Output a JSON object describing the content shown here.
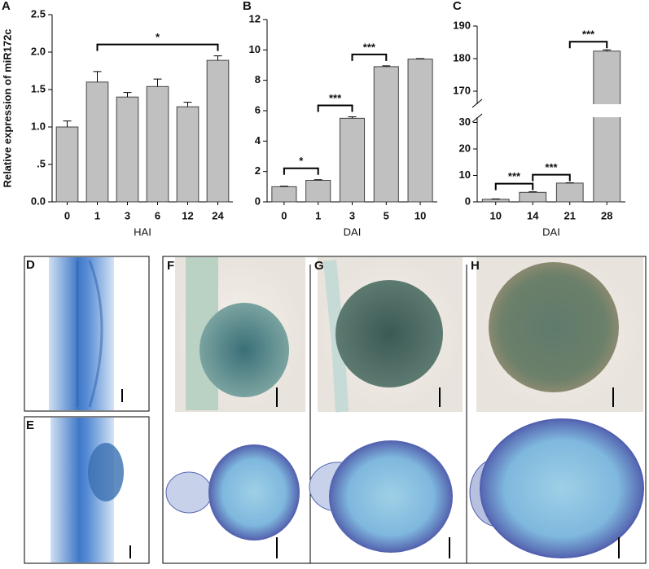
{
  "chart_data": [
    {
      "type": "bar",
      "panel": "A",
      "y_label": "Relative expression of miR172c",
      "x_label": "HAI",
      "categories": [
        "0",
        "1",
        "3",
        "6",
        "12",
        "24"
      ],
      "values": [
        1.0,
        1.6,
        1.4,
        1.54,
        1.27,
        1.89
      ],
      "errors": [
        0.08,
        0.14,
        0.06,
        0.1,
        0.06,
        0.06
      ],
      "color": "#c0c0c0",
      "ylim": [
        0,
        2.5
      ],
      "yticks": [
        {
          "value": 0,
          "label": "0.0"
        },
        {
          "value": 0.5,
          "label": ".5"
        },
        {
          "value": 1,
          "label": "1.0"
        },
        1.5,
        {
          "value": 2,
          "label": "2.0"
        },
        2.5
      ],
      "annotations": [
        {
          "text": "*",
          "from": "1",
          "to": "24"
        }
      ]
    },
    {
      "type": "bar",
      "panel": "B",
      "x_label": "DAI",
      "categories": [
        "0",
        "1",
        "3",
        "5",
        "10"
      ],
      "values": [
        1.0,
        1.42,
        5.5,
        8.9,
        9.4
      ],
      "errors": [
        0.03,
        0.04,
        0.1,
        0.05,
        0.03
      ],
      "color": "#c0c0c0",
      "ylim": [
        0,
        12
      ],
      "yticks": [
        0,
        2,
        4,
        6,
        8,
        10,
        12
      ],
      "annotations": [
        {
          "text": "*",
          "from": "0",
          "to": "1"
        },
        {
          "text": "***",
          "from": "1",
          "to": "3"
        },
        {
          "text": "***",
          "from": "3",
          "to": "5"
        }
      ]
    },
    {
      "type": "bar",
      "panel": "C",
      "x_label": "DAI",
      "categories": [
        "10",
        "14",
        "21",
        "28"
      ],
      "values": [
        1.0,
        3.6,
        7.1,
        182.3
      ],
      "errors": [
        0.1,
        0.2,
        0.1,
        0.4
      ],
      "color": "#c0c0c0",
      "ylim": [
        0,
        190
      ],
      "ybreak": [
        32,
        166
      ],
      "yticks": [
        0,
        10,
        20,
        30,
        170,
        180,
        190
      ],
      "annotations": [
        {
          "text": "***",
          "from": "10",
          "to": "14"
        },
        {
          "text": "***",
          "from": "14",
          "to": "21"
        },
        {
          "text": "***",
          "from": "21",
          "to": "28"
        }
      ]
    }
  ],
  "image_panels": [
    "D",
    "E",
    "F",
    "G",
    "H"
  ]
}
